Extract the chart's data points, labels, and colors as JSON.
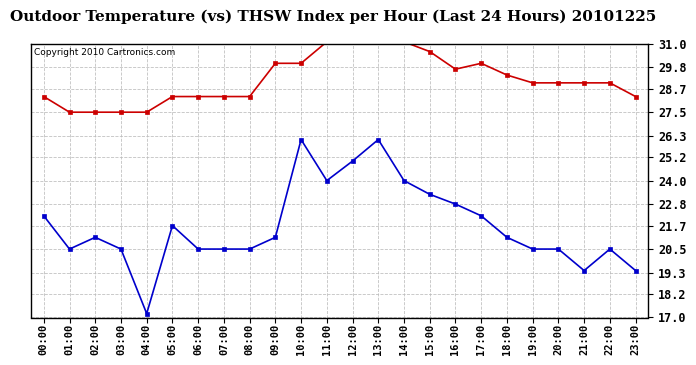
{
  "title": "Outdoor Temperature (vs) THSW Index per Hour (Last 24 Hours) 20101225",
  "copyright": "Copyright 2010 Cartronics.com",
  "hours": [
    "00:00",
    "01:00",
    "02:00",
    "03:00",
    "04:00",
    "05:00",
    "06:00",
    "07:00",
    "08:00",
    "09:00",
    "10:00",
    "11:00",
    "12:00",
    "13:00",
    "14:00",
    "15:00",
    "16:00",
    "17:00",
    "18:00",
    "19:00",
    "20:00",
    "21:00",
    "22:00",
    "23:00"
  ],
  "blue_data": [
    22.2,
    20.5,
    21.1,
    20.5,
    17.2,
    21.7,
    20.5,
    20.5,
    20.5,
    21.1,
    26.1,
    24.0,
    25.0,
    26.1,
    24.0,
    23.3,
    22.8,
    22.2,
    21.1,
    20.5,
    20.5,
    19.4,
    20.5,
    19.4
  ],
  "red_data": [
    28.3,
    27.5,
    27.5,
    27.5,
    27.5,
    28.3,
    28.3,
    28.3,
    28.3,
    30.0,
    30.0,
    31.1,
    31.1,
    31.1,
    31.1,
    30.6,
    29.7,
    30.0,
    29.4,
    29.0,
    29.0,
    29.0,
    29.0,
    28.3
  ],
  "ylim": [
    17.0,
    31.0
  ],
  "yticks": [
    17.0,
    18.2,
    19.3,
    20.5,
    21.7,
    22.8,
    24.0,
    25.2,
    26.3,
    27.5,
    28.7,
    29.8,
    31.0
  ],
  "blue_color": "#0000cc",
  "red_color": "#cc0000",
  "bg_color": "#ffffff",
  "grid_color": "#bbbbbb",
  "title_fontsize": 11,
  "copyright_fontsize": 6.5,
  "tick_fontsize": 8.5
}
